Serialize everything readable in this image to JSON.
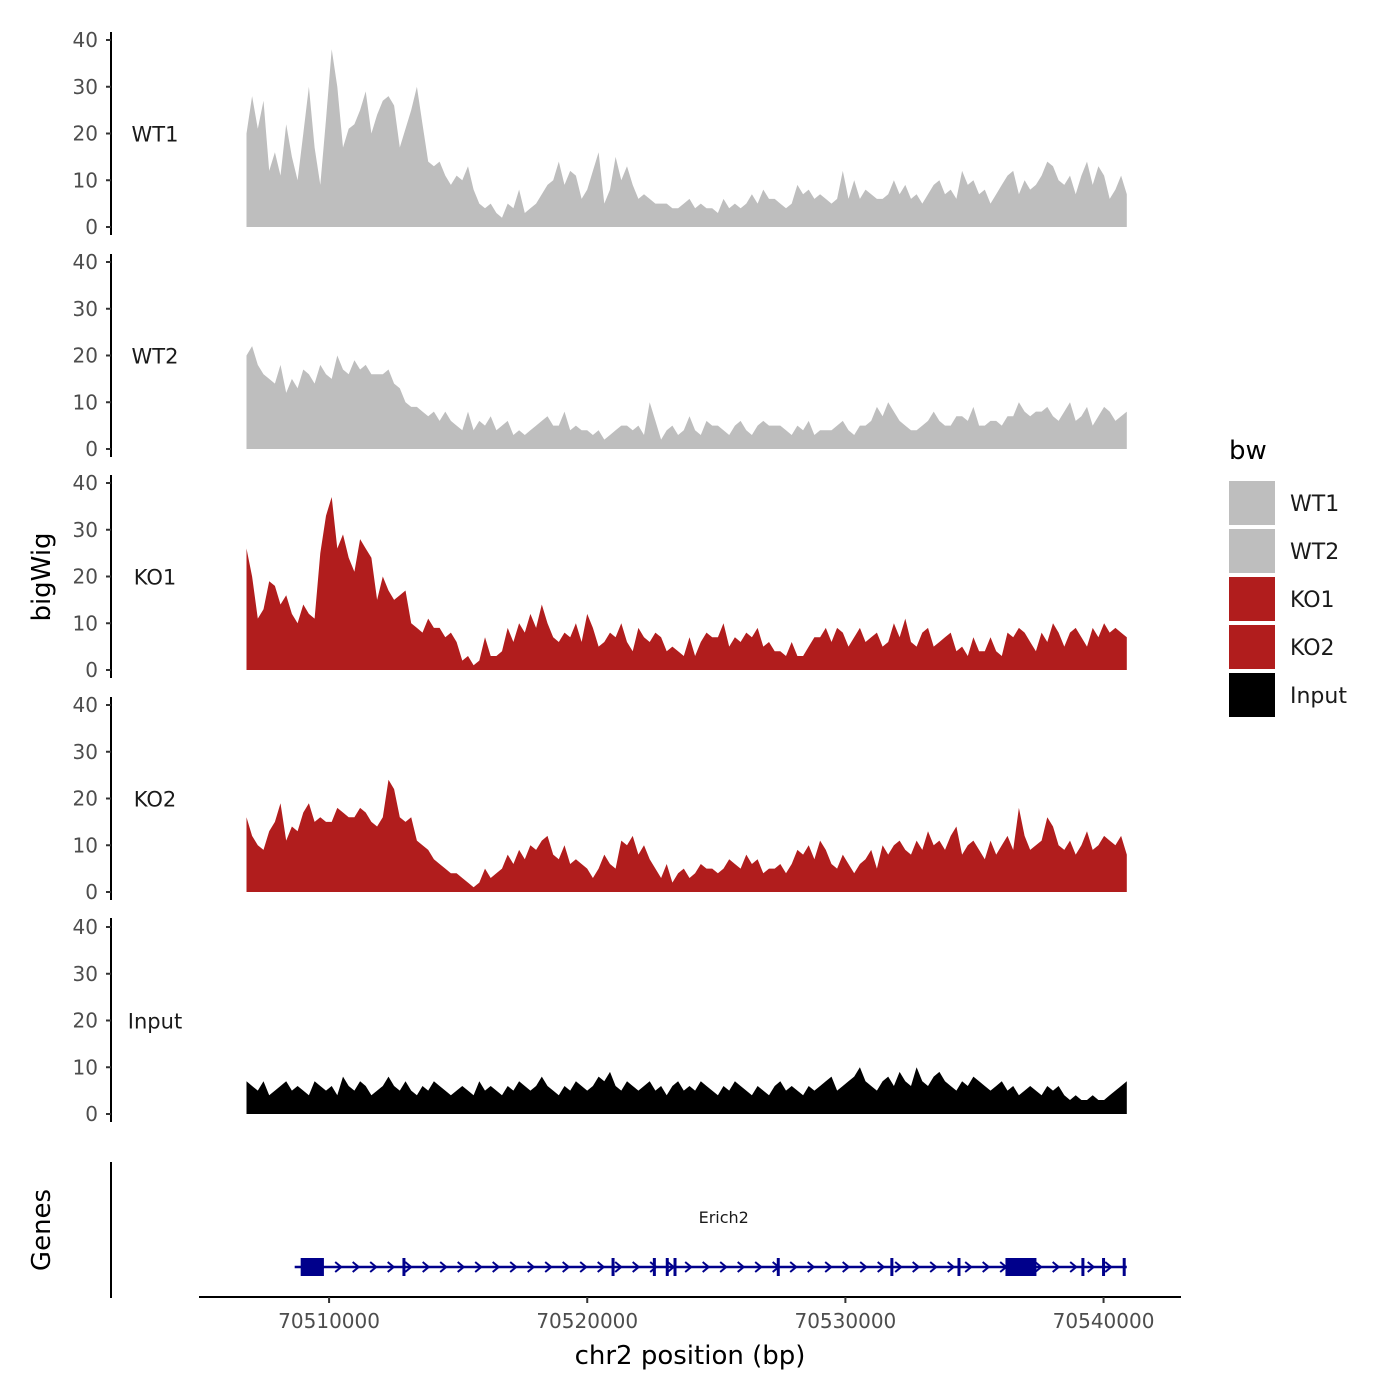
{
  "chart_data": {
    "type": "area",
    "description_tracks": "stacked bigWig coverage tracks with gene annotation",
    "ylabel": "bigWig",
    "xlabel": "chr2 position (bp)",
    "ylim": [
      0,
      40
    ],
    "y_ticks": [
      0,
      10,
      20,
      30,
      40
    ],
    "y_tick_labels": [
      "0",
      "10",
      "20",
      "30",
      "40"
    ],
    "xlim": [
      70505000,
      70543000
    ],
    "x_ticks": [
      70510000,
      70520000,
      70530000,
      70540000
    ],
    "x_tick_labels": [
      "70510000",
      "70520000",
      "70530000",
      "70540000"
    ],
    "data_range": [
      70506800,
      70540900
    ],
    "series": [
      {
        "name": "WT1",
        "color": "#bebebe",
        "values": [
          20,
          28,
          21,
          27,
          12,
          16,
          11,
          22,
          15,
          10,
          20,
          30,
          17,
          9,
          23,
          38,
          30,
          17,
          21,
          22,
          25,
          29,
          20,
          24,
          27,
          28,
          26,
          17,
          21,
          25,
          30,
          22,
          14,
          13,
          14,
          11,
          9,
          11,
          10,
          13,
          8,
          5,
          4,
          5,
          3,
          2,
          5,
          4,
          8,
          3,
          4,
          5,
          7,
          9,
          10,
          14,
          9,
          12,
          11,
          6,
          8,
          12,
          16,
          5,
          8,
          15,
          10,
          13,
          9,
          6,
          7,
          6,
          5,
          5,
          5,
          4,
          4,
          5,
          6,
          4,
          5,
          4,
          4,
          3,
          6,
          4,
          5,
          4,
          5,
          7,
          5,
          8,
          6,
          6,
          5,
          4,
          5,
          9,
          7,
          8,
          6,
          7,
          6,
          5,
          6,
          12,
          6,
          10,
          6,
          8,
          7,
          6,
          6,
          7,
          10,
          7,
          9,
          6,
          7,
          5,
          7,
          9,
          10,
          7,
          8,
          6,
          12,
          9,
          10,
          7,
          8,
          5,
          7,
          9,
          11,
          12,
          7,
          10,
          8,
          9,
          11,
          14,
          13,
          10,
          9,
          11,
          7,
          11,
          14,
          9,
          13,
          11,
          6,
          8,
          11,
          7
        ]
      },
      {
        "name": "WT2",
        "color": "#bebebe",
        "values": [
          20,
          22,
          18,
          16,
          15,
          14,
          18,
          12,
          15,
          13,
          17,
          16,
          14,
          18,
          16,
          15,
          20,
          17,
          16,
          19,
          17,
          18,
          16,
          16,
          16,
          17,
          14,
          13,
          10,
          9,
          9,
          8,
          7,
          8,
          6,
          8,
          6,
          5,
          4,
          8,
          4,
          6,
          5,
          7,
          4,
          5,
          6,
          3,
          4,
          3,
          4,
          5,
          6,
          7,
          5,
          5,
          8,
          4,
          5,
          4,
          4,
          3,
          4,
          2,
          3,
          4,
          5,
          5,
          4,
          5,
          3,
          10,
          6,
          2,
          4,
          5,
          3,
          4,
          7,
          4,
          3,
          6,
          5,
          5,
          4,
          3,
          5,
          6,
          4,
          3,
          5,
          6,
          5,
          5,
          5,
          4,
          3,
          5,
          4,
          6,
          3,
          4,
          4,
          4,
          5,
          6,
          4,
          3,
          5,
          5,
          6,
          9,
          7,
          10,
          8,
          6,
          5,
          4,
          4,
          5,
          6,
          8,
          6,
          5,
          5,
          7,
          7,
          6,
          9,
          5,
          5,
          6,
          6,
          5,
          7,
          7,
          10,
          8,
          7,
          8,
          8,
          9,
          7,
          6,
          8,
          10,
          6,
          7,
          9,
          5,
          7,
          9,
          8,
          6,
          7,
          8
        ]
      },
      {
        "name": "KO1",
        "color": "#b11d1d",
        "values": [
          26,
          20,
          11,
          13,
          19,
          18,
          14,
          16,
          12,
          10,
          14,
          12,
          11,
          25,
          33,
          37,
          26,
          29,
          24,
          21,
          28,
          26,
          24,
          15,
          20,
          17,
          15,
          16,
          17,
          10,
          9,
          8,
          11,
          9,
          9,
          7,
          8,
          6,
          2,
          3,
          1,
          2,
          7,
          3,
          3,
          4,
          9,
          6,
          10,
          8,
          12,
          9,
          14,
          10,
          7,
          6,
          8,
          7,
          10,
          6,
          12,
          9,
          5,
          6,
          8,
          7,
          10,
          6,
          4,
          9,
          7,
          6,
          8,
          7,
          4,
          5,
          4,
          3,
          7,
          3,
          6,
          8,
          7,
          7,
          10,
          5,
          7,
          6,
          8,
          7,
          9,
          5,
          6,
          4,
          4,
          3,
          6,
          3,
          3,
          5,
          7,
          7,
          9,
          6,
          9,
          8,
          5,
          7,
          9,
          6,
          7,
          8,
          5,
          6,
          10,
          7,
          11,
          6,
          5,
          8,
          9,
          5,
          6,
          7,
          8,
          4,
          5,
          3,
          7,
          4,
          4,
          7,
          4,
          3,
          8,
          7,
          9,
          8,
          6,
          4,
          8,
          6,
          10,
          8,
          5,
          8,
          9,
          7,
          5,
          9,
          7,
          10,
          8,
          9,
          8,
          7
        ]
      },
      {
        "name": "KO2",
        "color": "#b11d1d",
        "values": [
          16,
          12,
          10,
          9,
          13,
          15,
          19,
          11,
          14,
          13,
          17,
          19,
          15,
          16,
          15,
          15,
          18,
          17,
          16,
          16,
          18,
          17,
          15,
          14,
          16,
          24,
          22,
          16,
          15,
          16,
          11,
          10,
          9,
          7,
          6,
          5,
          4,
          4,
          3,
          2,
          1,
          2,
          5,
          3,
          4,
          5,
          8,
          6,
          9,
          7,
          10,
          9,
          11,
          12,
          8,
          7,
          10,
          6,
          7,
          6,
          5,
          3,
          5,
          8,
          6,
          5,
          11,
          10,
          12,
          8,
          10,
          7,
          5,
          3,
          6,
          2,
          4,
          5,
          3,
          4,
          6,
          5,
          5,
          4,
          5,
          7,
          6,
          5,
          8,
          6,
          7,
          4,
          5,
          5,
          6,
          4,
          6,
          9,
          8,
          10,
          7,
          11,
          9,
          6,
          5,
          8,
          6,
          4,
          6,
          7,
          9,
          5,
          10,
          8,
          10,
          11,
          9,
          8,
          11,
          9,
          13,
          10,
          11,
          9,
          12,
          14,
          8,
          10,
          11,
          9,
          7,
          11,
          8,
          10,
          12,
          9,
          18,
          12,
          9,
          10,
          11,
          16,
          14,
          10,
          9,
          11,
          8,
          10,
          13,
          9,
          10,
          12,
          11,
          10,
          12,
          8
        ]
      },
      {
        "name": "Input",
        "color": "#000000",
        "values": [
          7,
          6,
          5,
          7,
          4,
          5,
          6,
          7,
          5,
          6,
          5,
          4,
          7,
          6,
          5,
          6,
          4,
          8,
          6,
          5,
          7,
          6,
          4,
          5,
          6,
          8,
          6,
          5,
          7,
          5,
          4,
          6,
          5,
          7,
          6,
          5,
          4,
          5,
          6,
          5,
          4,
          7,
          5,
          6,
          5,
          4,
          6,
          5,
          7,
          6,
          5,
          6,
          8,
          6,
          5,
          4,
          6,
          5,
          7,
          6,
          5,
          6,
          8,
          7,
          9,
          6,
          5,
          7,
          6,
          5,
          6,
          7,
          5,
          6,
          4,
          6,
          7,
          5,
          6,
          5,
          7,
          6,
          5,
          4,
          6,
          5,
          7,
          6,
          5,
          4,
          6,
          5,
          4,
          6,
          7,
          5,
          6,
          5,
          4,
          6,
          5,
          6,
          7,
          8,
          5,
          6,
          7,
          8,
          10,
          7,
          6,
          5,
          7,
          8,
          6,
          9,
          7,
          6,
          10,
          7,
          6,
          8,
          9,
          7,
          6,
          5,
          7,
          6,
          8,
          7,
          6,
          5,
          6,
          7,
          5,
          6,
          4,
          5,
          6,
          5,
          4,
          6,
          5,
          6,
          4,
          3,
          4,
          3,
          3,
          4,
          3,
          3,
          4,
          5,
          6,
          7
        ]
      }
    ],
    "track_labels": [
      "WT1",
      "WT2",
      "KO1",
      "KO2",
      "Input"
    ],
    "legend": {
      "title": "bw",
      "position": "right",
      "entries": [
        "WT1",
        "WT2",
        "KO1",
        "KO2",
        "Input"
      ]
    },
    "genes": {
      "track_title": "Genes",
      "items": [
        {
          "name": "Erich2",
          "strand": "+",
          "start": 70508900,
          "end": 70540900,
          "color": "#00008b",
          "thick_blocks": [
            [
              70508900,
              70509800
            ],
            [
              70536200,
              70537400
            ]
          ],
          "exons": [
            70509600,
            70512900,
            70521000,
            70522600,
            70523100,
            70523400,
            70527400,
            70531800,
            70534400,
            70539200,
            70540000,
            70540800
          ]
        }
      ]
    }
  }
}
